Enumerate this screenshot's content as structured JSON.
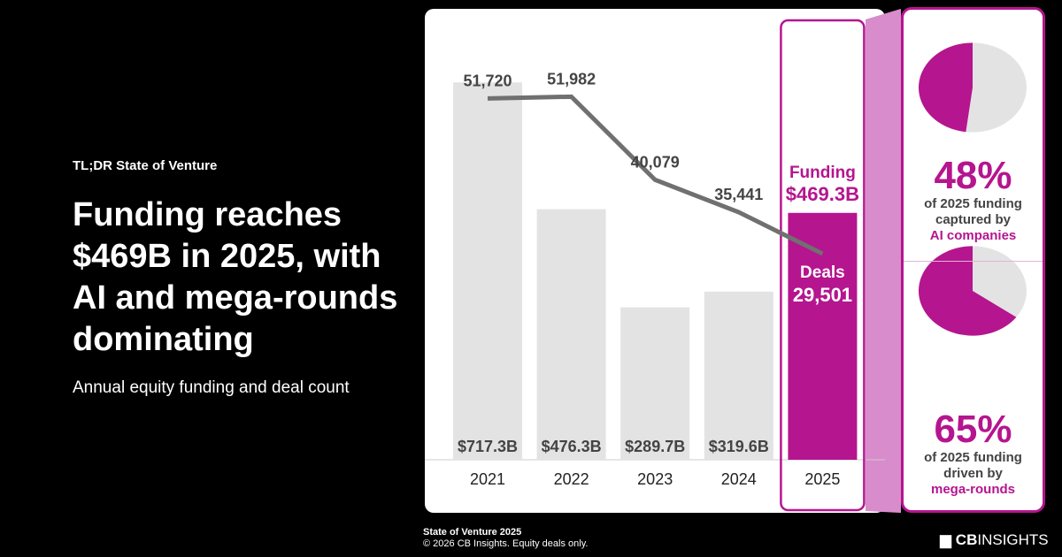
{
  "kicker": "TL;DR State of Venture",
  "title": "Funding reaches $469B in 2025, with AI and mega-rounds dominating",
  "subtitle": "Annual equity funding and deal count",
  "chart_data": {
    "type": "bar",
    "categories": [
      "2021",
      "2022",
      "2023",
      "2024",
      "2025"
    ],
    "series": [
      {
        "name": "Funding",
        "unit": "$B",
        "values": [
          717.3,
          476.3,
          289.7,
          319.6,
          469.3
        ],
        "labels": [
          "$717.3B",
          "$476.3B",
          "$289.7B",
          "$319.6B",
          "$469.3B"
        ]
      },
      {
        "name": "Deals",
        "type": "line",
        "values": [
          51720,
          51982,
          40079,
          35441,
          29501
        ],
        "labels": [
          "51,720",
          "51,982",
          "40,079",
          "35,441",
          "29,501"
        ]
      }
    ],
    "highlight": {
      "category": "2025",
      "funding_label": "Funding",
      "deals_label": "Deals"
    },
    "colors": {
      "bar": "#e3e3e3",
      "highlight": "#b5158f",
      "line": "#707070"
    }
  },
  "stats": [
    {
      "value": 48,
      "pct": "48%",
      "line1": "of 2025 funding",
      "line2": "captured by",
      "line3": "AI companies"
    },
    {
      "value": 65,
      "pct": "65%",
      "line1": "of 2025 funding",
      "line2": "driven by",
      "line3": "mega-rounds"
    }
  ],
  "footer": {
    "line1": "State of Venture 2025",
    "line2": "© 2026 CB Insights. Equity deals only."
  },
  "logo": {
    "bold": "CB",
    "rest": "INSIGHTS"
  }
}
